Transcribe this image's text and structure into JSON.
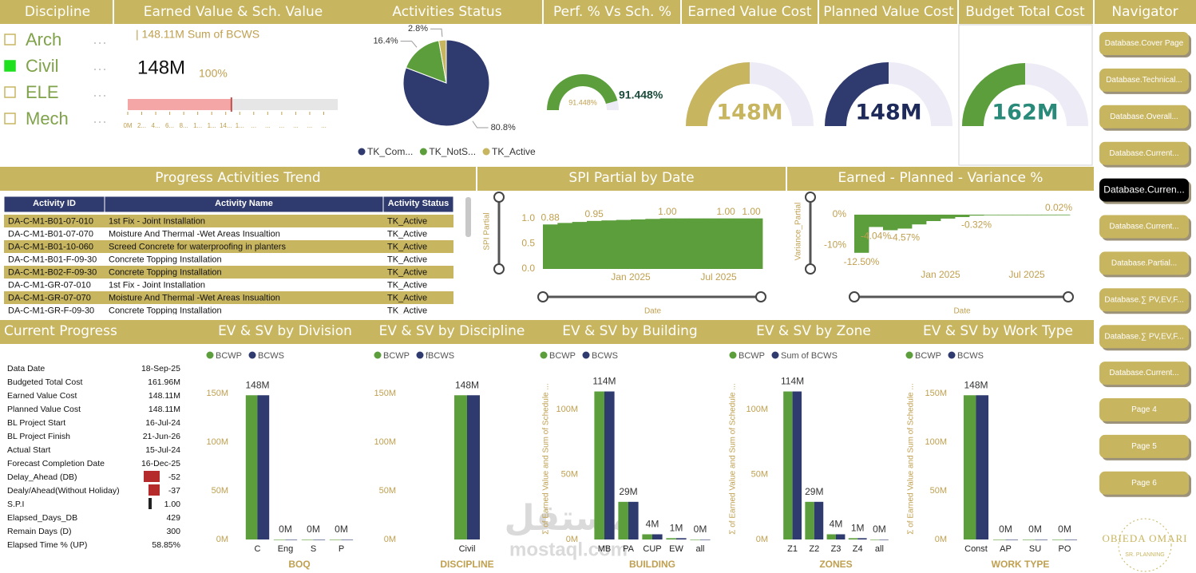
{
  "slicer": {
    "title": "Discipline",
    "items": [
      {
        "label": "Arch",
        "selected": false
      },
      {
        "label": "Civil",
        "selected": true
      },
      {
        "label": "ELE",
        "selected": false
      },
      {
        "label": "Mech",
        "selected": false
      }
    ]
  },
  "navigator": {
    "title": "Navigator",
    "selected": 4,
    "buttons": [
      "Database.Cover Page",
      "Database.Technical...",
      "Database.Overall...",
      "Database.Current...",
      "Database.Curren...",
      "Database.Current...",
      "Database.Partial...",
      "Database.∑ PV,EV,F...",
      "Database.∑ PV,EV,F...",
      "Database.Current...",
      "Page 4",
      "Page 5",
      "Page 6"
    ]
  },
  "activities_table": {
    "title": "Progress Activities Trend",
    "columns": [
      "Activity ID",
      "Activity Name",
      "Activity Status"
    ],
    "rows": [
      [
        "DA-C-M1-B01-07-010",
        "1st Fix  - Joint Installation",
        "TK_Active"
      ],
      [
        "DA-C-M1-B01-07-070",
        "Moisture And Thermal -Wet Areas Insualtion",
        "TK_Active"
      ],
      [
        "DA-C-M1-B01-10-060",
        "Screed Concrete for waterproofing in planters",
        "TK_Active"
      ],
      [
        "DA-C-M1-B01-F-09-30",
        "Concrete Topping Installation",
        "TK_Active"
      ],
      [
        "DA-C-M1-B02-F-09-30",
        "Concrete Topping Installation",
        "TK_Active"
      ],
      [
        "DA-C-M1-GR-07-010",
        "1st Fix - Joint Installation",
        "TK_Active"
      ],
      [
        "DA-C-M1-GR-07-070",
        "Moisture And Thermal -Wet Areas Insualtion",
        "TK_Active"
      ],
      [
        "DA-C-M1-GR-F-09-30",
        "Concrete Topping Installation",
        "TK_Active"
      ]
    ]
  },
  "current_progress": {
    "title": "Current Progress",
    "rows": [
      [
        "Data Date",
        "18-Sep-25"
      ],
      [
        "Budgeted Total Cost",
        "161.96M"
      ],
      [
        "Earned Value Cost",
        "148.11M"
      ],
      [
        "Planned Value Cost",
        "148.11M"
      ],
      [
        "BL Project Start",
        "16-Jul-24"
      ],
      [
        "BL Project Finish",
        "21-Jun-26"
      ],
      [
        "Actual Start",
        "15-Jul-24"
      ],
      [
        "Forecast Completion Date",
        "16-Dec-25"
      ],
      [
        "Delay_Ahead (DB)",
        "-52"
      ],
      [
        "Dealy/Ahead(Without Holiday)",
        "-37"
      ],
      [
        "S.P.I",
        "1.00"
      ],
      [
        "Elapsed_Days_DB",
        "429"
      ],
      [
        "Remain Days (D)",
        "300"
      ],
      [
        "Elapsed Time % (UP)",
        "58.85%"
      ]
    ]
  },
  "logo": {
    "name": "OBIEDA OMARI",
    "role": "SR. PLANNING"
  },
  "watermark": {
    "arabic": "مستقل",
    "latin": "mostaql.com"
  },
  "chart_data": [
    {
      "type": "bullet",
      "title": "Earned Value & Sch. Value",
      "value": 148.11,
      "value_label": "148M",
      "percent_label": "100%",
      "target": 148.11,
      "target_label": "| 148.11M Sum of BCWS",
      "color": "#f4a6a6",
      "target_color": "#c0504d",
      "xlim": [
        0,
        300
      ],
      "xticks": [
        {
          "value": 0,
          "label": "0M"
        },
        {
          "value": 20,
          "label": "2..."
        },
        {
          "value": 40,
          "label": "4..."
        },
        {
          "value": 60,
          "label": "6..."
        },
        {
          "value": 80,
          "label": "8..."
        },
        {
          "value": 100,
          "label": "1..."
        },
        {
          "value": 120,
          "label": "1..."
        },
        {
          "value": 140,
          "label": "14..."
        },
        {
          "value": 160,
          "label": "1..."
        },
        {
          "value": 180,
          "label": "..."
        },
        {
          "value": 200,
          "label": "..."
        },
        {
          "value": 220,
          "label": "..."
        },
        {
          "value": 240,
          "label": "..."
        },
        {
          "value": 260,
          "label": "..."
        },
        {
          "value": 280,
          "label": "..."
        }
      ]
    },
    {
      "type": "pie",
      "title": "Activities Status",
      "categories": [
        "TK_Com...",
        "TK_NotS...",
        "TK_Active"
      ],
      "values": [
        80.8,
        16.4,
        2.8
      ],
      "value_labels": [
        "80.8%",
        "16.4%",
        "2.8%"
      ],
      "colors": [
        "#2f3a6e",
        "#5c9e3c",
        "#c8b560"
      ]
    },
    {
      "type": "gauge",
      "title": "Perf. % Vs Sch. %",
      "value": 91.448,
      "value_label": "91.448%",
      "ylim": [
        0,
        100
      ],
      "color": "#5c9e3c"
    },
    {
      "type": "gauge",
      "title": "Earned Value Cost",
      "value": 148.11,
      "value_label": "148M",
      "ylim": [
        0,
        296.22
      ],
      "color": "#c8b560"
    },
    {
      "type": "gauge",
      "title": "Planned Value Cost",
      "value": 148.11,
      "value_label": "148M",
      "ylim": [
        0,
        296.22
      ],
      "color": "#2f3a6e"
    },
    {
      "type": "gauge",
      "title": "Budget Total Cost",
      "value": 161.96,
      "value_label": "162M",
      "ylim": [
        0,
        323.92
      ],
      "color": "#5c9e3c"
    },
    {
      "type": "column",
      "title": "SPI Partial by Date",
      "x_label": "Date",
      "y_label": "SPI Partial",
      "color": "#5c9e3c",
      "x": [
        "2024-07",
        "2024-08",
        "2024-09",
        "2024-10",
        "2024-11",
        "2024-12",
        "2025-01",
        "2025-02",
        "2025-03",
        "2025-04",
        "2025-05",
        "2025-06",
        "2025-07",
        "2025-08",
        "2025-09"
      ],
      "values": [
        0.88,
        0.91,
        0.93,
        0.95,
        0.96,
        0.97,
        0.98,
        0.99,
        1.0,
        1.0,
        1.0,
        1.0,
        1.0,
        1.0,
        1.0
      ],
      "value_labels": [
        "0.88",
        null,
        null,
        "0.95",
        null,
        null,
        null,
        null,
        "1.00",
        null,
        null,
        null,
        "1.00",
        null,
        "1.00"
      ],
      "xlim": [
        "2024-07",
        "2025-09"
      ],
      "xticks": [
        {
          "value": "2025-01",
          "label": "Jan 2025"
        },
        {
          "value": "2025-07",
          "label": "Jul 2025"
        }
      ],
      "ylim": [
        0,
        1.2
      ],
      "yticks": [
        {
          "value": 0,
          "label": "0.0"
        },
        0.5,
        {
          "value": 1,
          "label": "1.0"
        }
      ]
    },
    {
      "type": "column",
      "title": "Earned - Planned - Variance %",
      "x_label": "Date",
      "y_label": "Variance_Partial",
      "color": "#5c9e3c",
      "x": [
        "2024-07",
        "2024-08",
        "2024-09",
        "2024-10",
        "2024-11",
        "2024-12",
        "2025-01",
        "2025-02",
        "2025-03",
        "2025-04",
        "2025-05",
        "2025-06",
        "2025-07",
        "2025-08",
        "2025-09"
      ],
      "values": [
        -12.5,
        -4.04,
        -5.1,
        -4.57,
        -3.2,
        -2.1,
        -1.3,
        -0.8,
        -0.32,
        -0.2,
        -0.12,
        -0.06,
        -0.02,
        0.01,
        0.02
      ],
      "value_labels": [
        "-12.50%",
        "-4.04%",
        null,
        "-4.57%",
        null,
        null,
        null,
        null,
        "-0.32%",
        null,
        null,
        null,
        null,
        null,
        "0.02%"
      ],
      "xlim": [
        "2024-07",
        "2025-09"
      ],
      "xticks": [
        {
          "value": "2025-01",
          "label": "Jan 2025"
        },
        {
          "value": "2025-07",
          "label": "Jul 2025"
        }
      ],
      "ylim": [
        -17,
        6
      ],
      "yticks": [
        {
          "value": 0,
          "label": "0%"
        },
        {
          "value": -10,
          "label": "-10%"
        }
      ]
    },
    {
      "type": "bar",
      "title": "EV & SV by Division",
      "x_label": "BOQ",
      "categories": [
        "C",
        "Eng",
        "S",
        "P"
      ],
      "series": [
        {
          "name": "BCWP",
          "color": "#5c9e3c",
          "values": [
            148.11,
            0,
            0,
            0
          ]
        },
        {
          "name": "BCWS",
          "color": "#2f3a6e",
          "values": [
            148.11,
            0,
            0,
            0
          ],
          "value_labels": [
            "148M",
            "0M",
            "0M",
            "0M"
          ]
        }
      ],
      "ylim": [
        0,
        168
      ],
      "yticks": [
        {
          "value": 0,
          "label": "0M"
        },
        {
          "value": 50,
          "label": "50M"
        },
        {
          "value": 100,
          "label": "100M"
        },
        {
          "value": 150,
          "label": "150M"
        }
      ]
    },
    {
      "type": "bar",
      "title": "EV & SV by Discipline",
      "x_label": "DISCIPLINE",
      "categories": [
        "Civil"
      ],
      "series": [
        {
          "name": "BCWP",
          "color": "#5c9e3c",
          "values": [
            148.11
          ]
        },
        {
          "name": "fBCWS",
          "color": "#2f3a6e",
          "values": [
            148.11
          ],
          "value_labels": [
            "148M"
          ]
        }
      ],
      "ylim": [
        0,
        168
      ],
      "yticks": [
        {
          "value": 0,
          "label": "0M"
        },
        {
          "value": 50,
          "label": "50M"
        },
        {
          "value": 100,
          "label": "100M"
        },
        {
          "value": 150,
          "label": "150M"
        }
      ]
    },
    {
      "type": "bar",
      "title": "EV & SV by Building",
      "x_label": "BUILDING",
      "y_label": "Σ of Earned Value and Sum of Schedule ...",
      "categories": [
        "MB",
        "PA",
        "CUP",
        "EW",
        "all"
      ],
      "series": [
        {
          "name": "BCWP",
          "color": "#5c9e3c",
          "values": [
            114,
            29,
            4,
            1,
            0
          ]
        },
        {
          "name": "BCWS",
          "color": "#2f3a6e",
          "values": [
            114,
            29,
            4,
            1,
            0
          ],
          "value_labels": [
            "114M",
            "29M",
            "4M",
            "1M",
            "0M"
          ]
        }
      ],
      "ylim": [
        0,
        126
      ],
      "yticks": [
        {
          "value": 0,
          "label": "0M"
        },
        {
          "value": 50,
          "label": "50M"
        },
        {
          "value": 100,
          "label": "100M"
        }
      ]
    },
    {
      "type": "bar",
      "title": "EV & SV by Zone",
      "x_label": "ZONES",
      "y_label": "Σ of Earned Value and Sum of Schedule ...",
      "categories": [
        "Z1",
        "Z2",
        "Z3",
        "Z4",
        "all"
      ],
      "series": [
        {
          "name": "BCWP",
          "color": "#5c9e3c",
          "values": [
            114,
            29,
            4,
            1,
            0
          ]
        },
        {
          "name": "Sum of BCWS",
          "color": "#2f3a6e",
          "values": [
            114,
            29,
            4,
            1,
            0
          ],
          "value_labels": [
            "114M",
            "29M",
            "4M",
            "1M",
            "0M"
          ]
        }
      ],
      "ylim": [
        0,
        126
      ],
      "yticks": [
        {
          "value": 0,
          "label": "0M"
        },
        {
          "value": 50,
          "label": "50M"
        },
        {
          "value": 100,
          "label": "100M"
        }
      ]
    },
    {
      "type": "bar",
      "title": "EV & SV by Work Type",
      "x_label": "WORK TYPE",
      "y_label": "Σ of Earned Value and Sum of Schedule ...",
      "categories": [
        "Const",
        "AP",
        "SU",
        "PO"
      ],
      "series": [
        {
          "name": "BCWP",
          "color": "#5c9e3c",
          "values": [
            148.11,
            0,
            0,
            0
          ]
        },
        {
          "name": "BCWS",
          "color": "#2f3a6e",
          "values": [
            148.11,
            0,
            0,
            0
          ],
          "value_labels": [
            "148M",
            "0M",
            "0M",
            "0M"
          ]
        }
      ],
      "ylim": [
        0,
        168
      ],
      "yticks": [
        {
          "value": 0,
          "label": "0M"
        },
        {
          "value": 50,
          "label": "50M"
        },
        {
          "value": 100,
          "label": "100M"
        },
        {
          "value": 150,
          "label": "150M"
        }
      ]
    }
  ]
}
